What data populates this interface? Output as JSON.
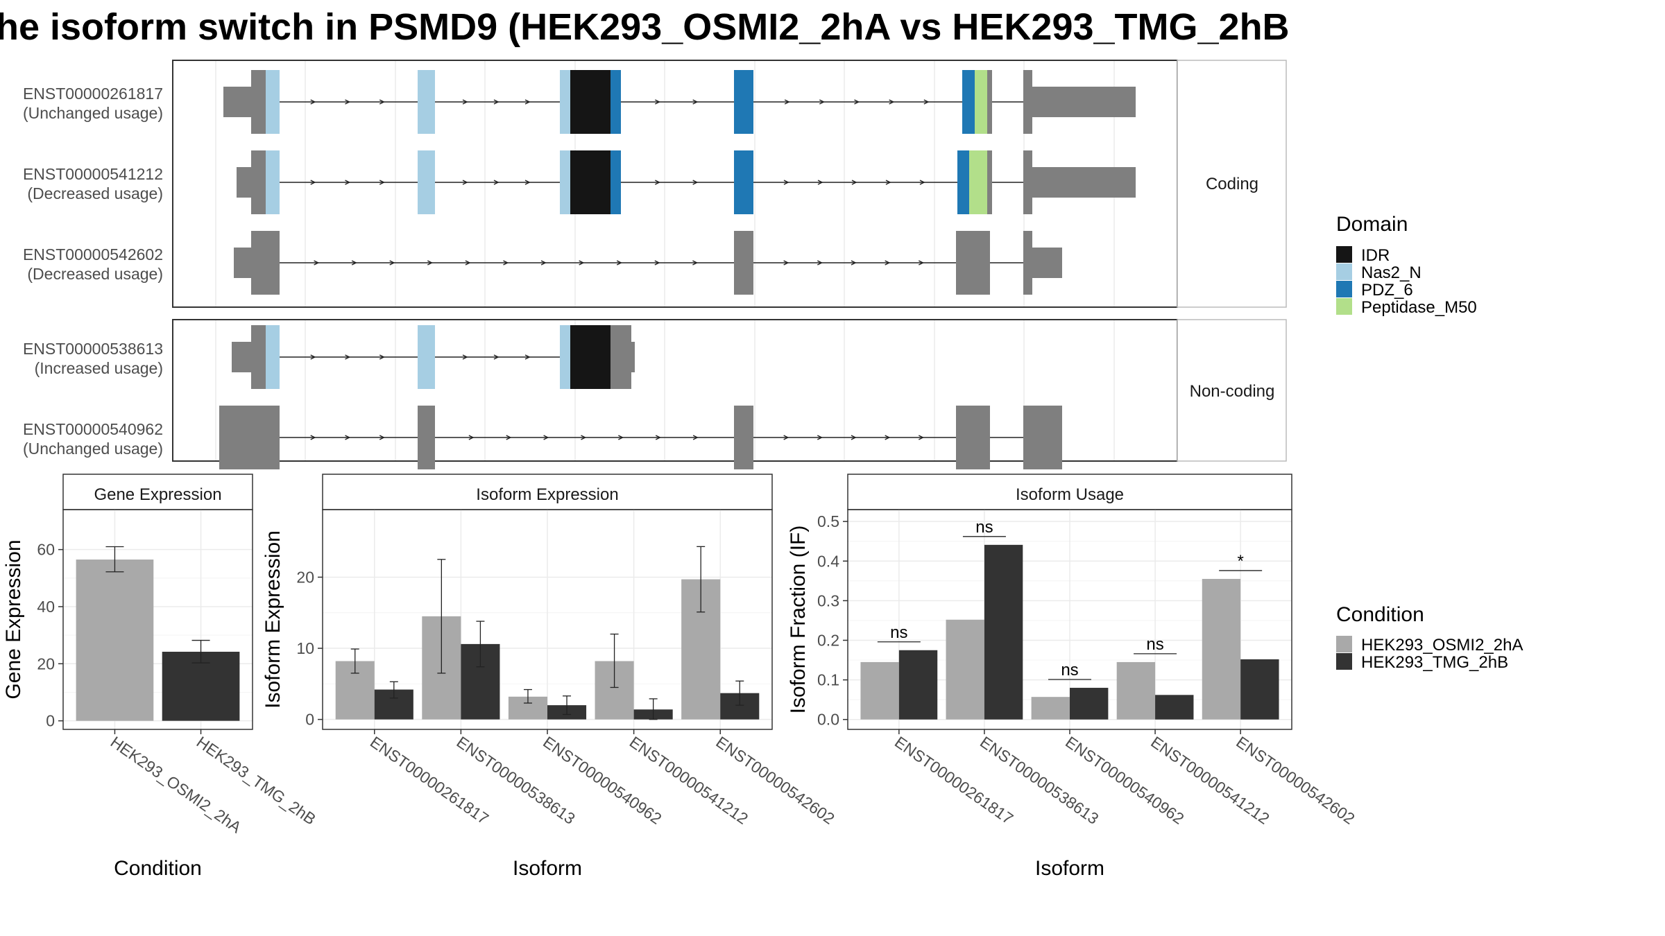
{
  "title": "he isoform switch in PSMD9 (HEK293_OSMI2_2hA vs HEK293_TMG_2hB",
  "colors": {
    "IDR": "#151515",
    "Nas2_N": "#a6cee3",
    "PDZ_6": "#1f78b4",
    "Peptidase_M50": "#b2df8a",
    "exon": "#7f7f7f",
    "cond1": "#a9a9a9",
    "cond2": "#333333"
  },
  "structure": {
    "facets": [
      "Coding",
      "Non-coding"
    ],
    "transcripts": [
      {
        "id": "ENST00000261817",
        "usage": "(Unchanged usage)",
        "facet": "Coding"
      },
      {
        "id": "ENST00000541212",
        "usage": "(Decreased usage)",
        "facet": "Coding"
      },
      {
        "id": "ENST00000542602",
        "usage": "(Decreased usage)",
        "facet": "Coding"
      },
      {
        "id": "ENST00000538613",
        "usage": "(Increased usage)",
        "facet": "Non-coding"
      },
      {
        "id": "ENST00000540962",
        "usage": "(Unchanged usage)",
        "facet": "Non-coding"
      }
    ]
  },
  "legend_domain": {
    "title": "Domain",
    "items": [
      {
        "label": "IDR",
        "color": "#151515"
      },
      {
        "label": "Nas2_N",
        "color": "#a6cee3"
      },
      {
        "label": "PDZ_6",
        "color": "#1f78b4"
      },
      {
        "label": "Peptidase_M50",
        "color": "#b2df8a"
      }
    ]
  },
  "legend_condition": {
    "title": "Condition",
    "items": [
      {
        "label": "HEK293_OSMI2_2hA",
        "color": "#a9a9a9"
      },
      {
        "label": "HEK293_TMG_2hB",
        "color": "#333333"
      }
    ]
  },
  "chart_data": [
    {
      "type": "bar",
      "strip": "Gene Expression",
      "xlabel": "Condition",
      "ylabel": "Gene Expression",
      "categories": [
        "HEK293_OSMI2_2hA",
        "HEK293_TMG_2hB"
      ],
      "values": [
        56.5,
        24.2
      ],
      "err_low": [
        52.2,
        20.3
      ],
      "err_high": [
        61.0,
        28.2
      ],
      "ylim": [
        -3,
        74
      ],
      "yticks": [
        0,
        20,
        40,
        60
      ],
      "grid": true
    },
    {
      "type": "bar",
      "strip": "Isoform Expression",
      "xlabel": "Isoform",
      "ylabel": "Isoform Expression",
      "categories": [
        "ENST00000261817",
        "ENST00000538613",
        "ENST00000540962",
        "ENST00000541212",
        "ENST00000542602"
      ],
      "series": [
        {
          "name": "HEK293_OSMI2_2hA",
          "values": [
            8.2,
            14.5,
            3.2,
            8.2,
            19.7
          ],
          "err_low": [
            6.5,
            6.5,
            2.3,
            4.5,
            15.1
          ],
          "err_high": [
            9.9,
            22.5,
            4.2,
            12.0,
            24.3
          ]
        },
        {
          "name": "HEK293_TMG_2hB",
          "values": [
            4.2,
            10.6,
            2.0,
            1.4,
            3.7
          ],
          "err_low": [
            3.0,
            7.4,
            0.7,
            0.0,
            2.0
          ],
          "err_high": [
            5.3,
            13.8,
            3.3,
            2.9,
            5.4
          ]
        }
      ],
      "ylim": [
        -1.4,
        29.5
      ],
      "yticks": [
        0,
        10,
        20
      ],
      "grid": true
    },
    {
      "type": "bar",
      "strip": "Isoform Usage",
      "xlabel": "Isoform",
      "ylabel": "Isoform Fraction (IF)",
      "categories": [
        "ENST00000261817",
        "ENST00000538613",
        "ENST00000540962",
        "ENST00000541212",
        "ENST00000542602"
      ],
      "series": [
        {
          "name": "HEK293_OSMI2_2hA",
          "values": [
            0.145,
            0.252,
            0.057,
            0.145,
            0.355
          ]
        },
        {
          "name": "HEK293_TMG_2hB",
          "values": [
            0.175,
            0.441,
            0.08,
            0.062,
            0.152
          ]
        }
      ],
      "significance": [
        "ns",
        "ns",
        "ns",
        "ns",
        "*"
      ],
      "ylim": [
        -0.025,
        0.53
      ],
      "yticks": [
        0.0,
        0.1,
        0.2,
        0.3,
        0.4,
        0.5
      ],
      "ytick_labels": [
        "0.0",
        "0.1",
        "0.2",
        "0.3",
        "0.4",
        "0.5"
      ],
      "grid": true
    }
  ]
}
